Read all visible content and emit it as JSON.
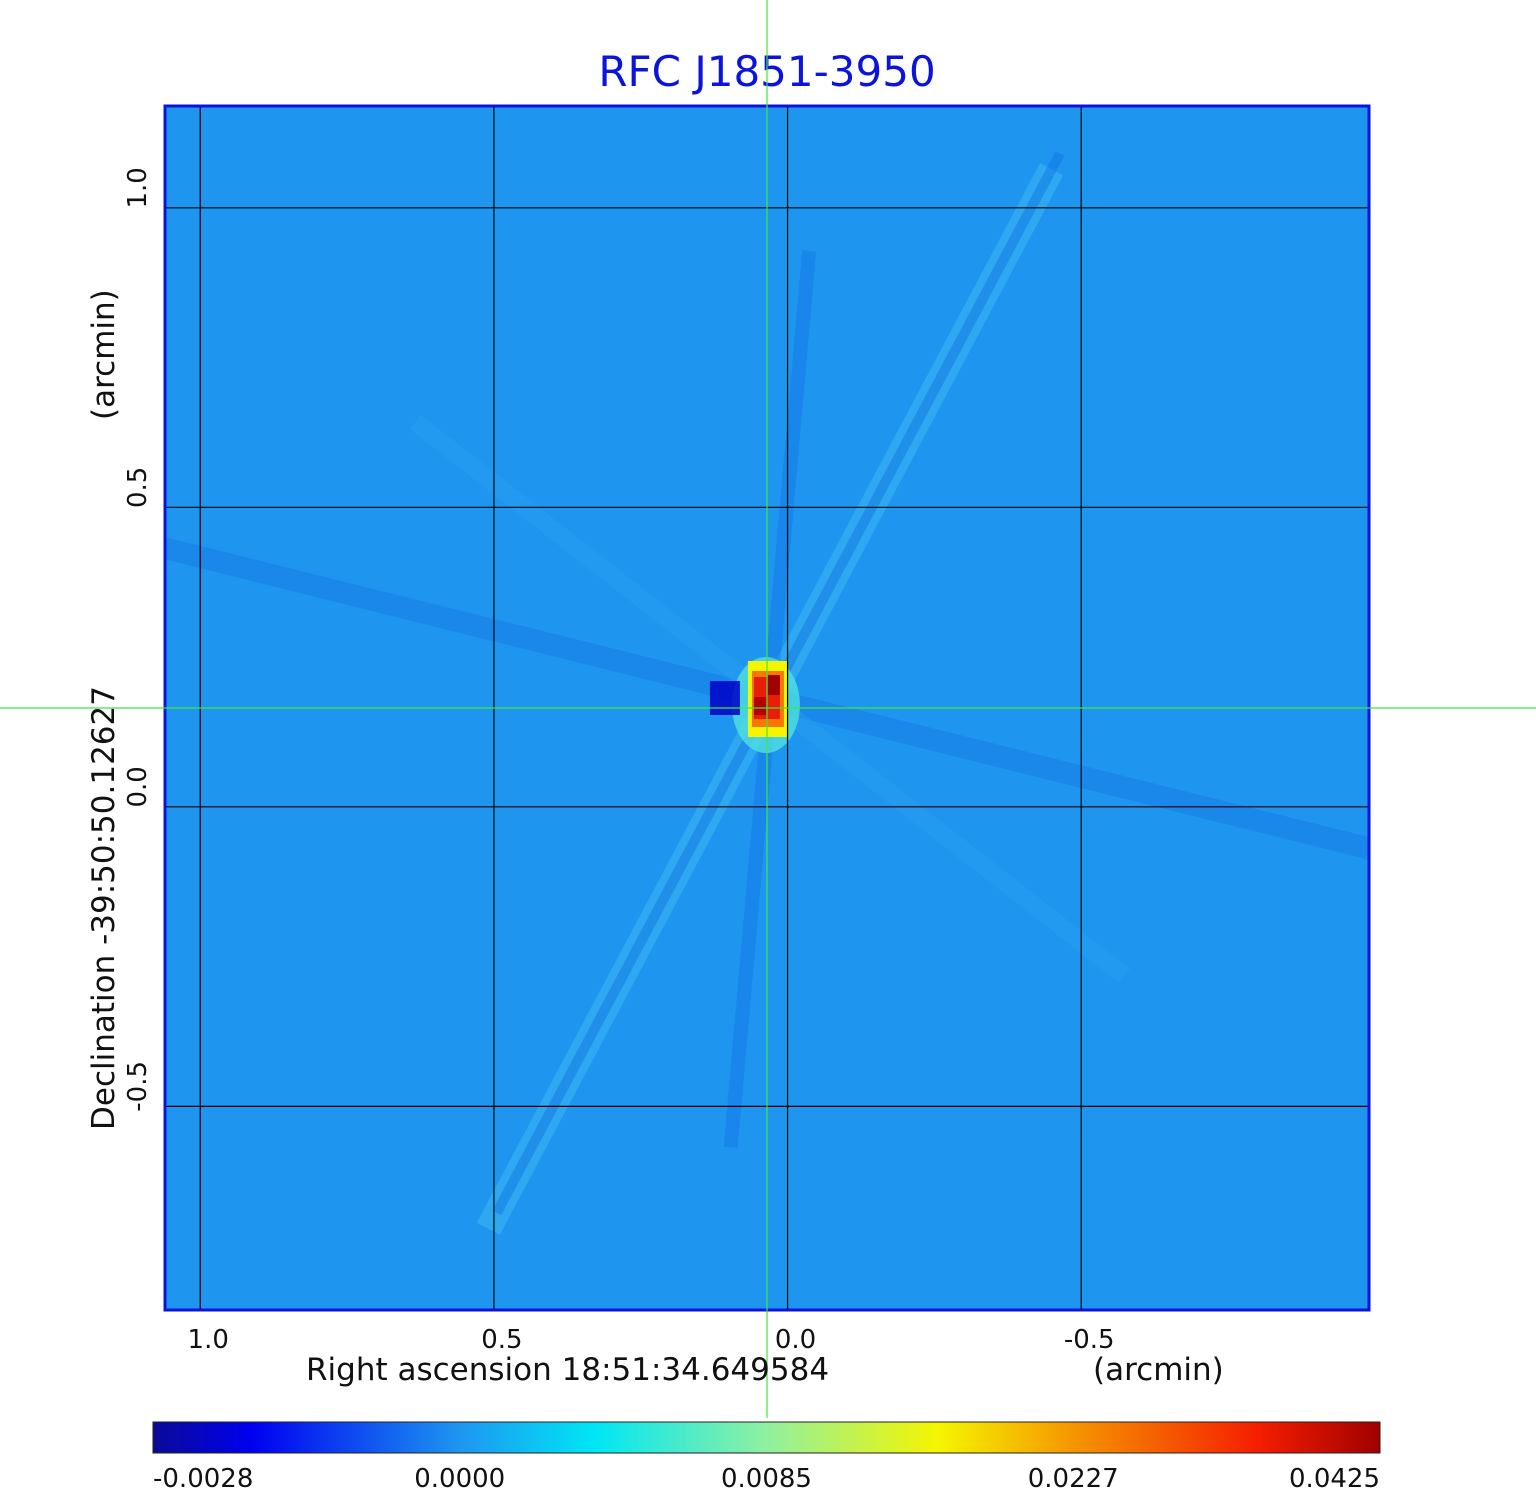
{
  "chart_data": {
    "type": "heatmap",
    "title": "RFC J1851-3950",
    "xlabel": "Right ascension  18:51:34.649584",
    "xunit": "(arcmin)",
    "ylabel": "Declination  -39:50:50.12627",
    "yunit": "(arcmin)",
    "xlim": [
      1.06,
      -0.99
    ],
    "ylim": [
      -0.84,
      1.17
    ],
    "x_ticks": [
      {
        "value": 1.0,
        "label": "1.0"
      },
      {
        "value": 0.5,
        "label": "0.5"
      },
      {
        "value": 0.0,
        "label": "0.0"
      },
      {
        "value": -0.5,
        "label": "-0.5"
      }
    ],
    "y_ticks": [
      {
        "value": 1.0,
        "label": "1.0"
      },
      {
        "value": 0.5,
        "label": "0.5"
      },
      {
        "value": 0.0,
        "label": "0.0"
      },
      {
        "value": -0.5,
        "label": "-0.5"
      }
    ],
    "grid": true,
    "crosshair": {
      "x": 0.035,
      "y": 0.165
    },
    "source_peak": {
      "x": 0.03,
      "y": 0.18
    },
    "colormap": "jet",
    "colorbar": {
      "location": "bottom",
      "ticks": [
        "-0.0028",
        "0.0000",
        "0.0085",
        "0.0227",
        "0.0425"
      ]
    }
  },
  "colors": {
    "title": "#0a14dc",
    "frame": "#0a14dc",
    "grid": "#000000",
    "crosshair": "#3ee83e",
    "background_field": "#1e96f0"
  }
}
